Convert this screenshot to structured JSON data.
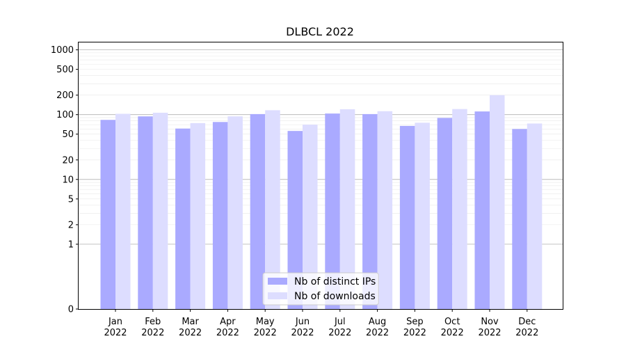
{
  "chart_data": {
    "type": "bar",
    "title": "DLBCL 2022",
    "xlabel": "",
    "ylabel": "",
    "y_scale": "symlog",
    "ylim": [
      0,
      1300
    ],
    "y_ticks": [
      0,
      1,
      2,
      5,
      10,
      20,
      50,
      100,
      200,
      500,
      1000
    ],
    "grid": true,
    "legend_position": "bottom-center",
    "categories": [
      [
        "Jan",
        "2022"
      ],
      [
        "Feb",
        "2022"
      ],
      [
        "Mar",
        "2022"
      ],
      [
        "Apr",
        "2022"
      ],
      [
        "May",
        "2022"
      ],
      [
        "Jun",
        "2022"
      ],
      [
        "Jul",
        "2022"
      ],
      [
        "Aug",
        "2022"
      ],
      [
        "Sep",
        "2022"
      ],
      [
        "Oct",
        "2022"
      ],
      [
        "Nov",
        "2022"
      ],
      [
        "Dec",
        "2022"
      ]
    ],
    "series": [
      {
        "name": "Nb of distinct IPs",
        "color": "#aaaaff",
        "values": [
          83,
          94,
          61,
          77,
          102,
          56,
          104,
          102,
          67,
          89,
          112,
          60
        ]
      },
      {
        "name": "Nb of downloads",
        "color": "#ddddff",
        "values": [
          103,
          107,
          74,
          94,
          117,
          70,
          121,
          113,
          75,
          122,
          200,
          73
        ]
      }
    ]
  }
}
